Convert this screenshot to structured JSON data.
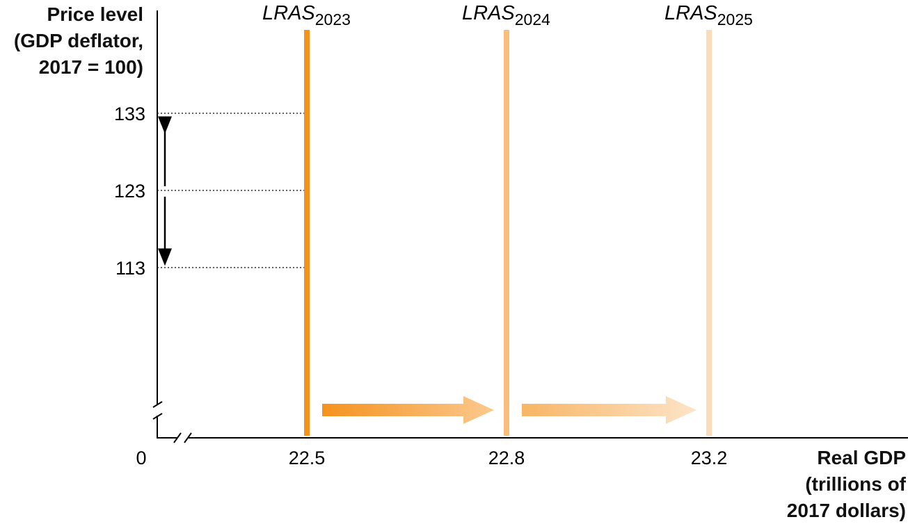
{
  "chart_data": {
    "type": "line",
    "ylabel_lines": [
      "Price level",
      "(GDP deflator,",
      "2017 = 100)"
    ],
    "xlabel_lines": [
      "Real GDP",
      "(trillions of",
      "2017 dollars)"
    ],
    "origin_label": "0",
    "yticks": [
      "133",
      "123",
      "113"
    ],
    "xticks": [
      "22.5",
      "22.8",
      "23.2"
    ],
    "series": [
      {
        "name": "LRAS",
        "subscript": "2023",
        "x": 22.5,
        "color": "#f5921e"
      },
      {
        "name": "LRAS",
        "subscript": "2024",
        "x": 22.8,
        "color": "#f8bf7c"
      },
      {
        "name": "LRAS",
        "subscript": "2025",
        "x": 23.2,
        "color": "#fbdcb8"
      }
    ],
    "price_levels": [
      133,
      123,
      113
    ],
    "shift_arrows": [
      {
        "from": "LRAS 2023",
        "to": "LRAS 2024",
        "color_start": "#f5921e",
        "color_end": "#fbc98f"
      },
      {
        "from": "LRAS 2024",
        "to": "LRAS 2025",
        "color_start": "#f8b565",
        "color_end": "#fde4c8"
      }
    ],
    "grid": false
  }
}
